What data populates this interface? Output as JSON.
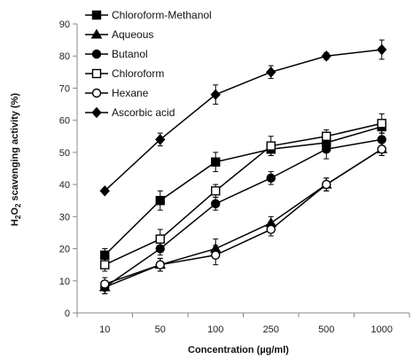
{
  "chart_data": {
    "type": "line",
    "title": "",
    "xlabel": "Concentration (µg/ml)",
    "ylabel": {
      "prefix": "H",
      "sub1": "2",
      "mid": "O",
      "sub2": "2",
      "suffix": " scavenging activity (%)"
    },
    "categories": [
      "10",
      "50",
      "100",
      "250",
      "500",
      "1000"
    ],
    "ylim": [
      0,
      90
    ],
    "yticks": [
      0,
      10,
      20,
      30,
      40,
      50,
      60,
      70,
      80,
      90
    ],
    "grid": false,
    "legend_position": "top-left",
    "series": [
      {
        "name": "Chloroform-Methanol",
        "marker": "square-filled",
        "values": [
          18,
          35,
          47,
          51,
          53,
          58
        ],
        "errors": [
          2,
          3,
          3,
          2,
          2,
          2
        ]
      },
      {
        "name": "Aqueous",
        "marker": "triangle-filled",
        "values": [
          8,
          15,
          20,
          28,
          40,
          51
        ],
        "errors": [
          2,
          2,
          3,
          2,
          2,
          2
        ]
      },
      {
        "name": "Butanol",
        "marker": "circle-filled",
        "values": [
          8,
          20,
          34,
          42,
          51,
          54
        ],
        "errors": [
          2,
          2,
          2,
          2,
          3,
          2
        ]
      },
      {
        "name": "Chloroform",
        "marker": "square-open",
        "values": [
          15,
          23,
          38,
          52,
          55,
          59
        ],
        "errors": [
          2,
          3,
          2,
          3,
          2,
          3
        ]
      },
      {
        "name": "Hexane",
        "marker": "circle-open",
        "values": [
          9,
          15,
          18,
          26,
          40,
          51
        ],
        "errors": [
          2,
          2,
          3,
          2,
          2,
          2
        ]
      },
      {
        "name": "Ascorbic acid",
        "marker": "diamond-filled",
        "values": [
          38,
          54,
          68,
          75,
          80,
          82
        ],
        "errors": [
          0,
          2,
          3,
          2,
          1,
          3
        ]
      }
    ]
  }
}
